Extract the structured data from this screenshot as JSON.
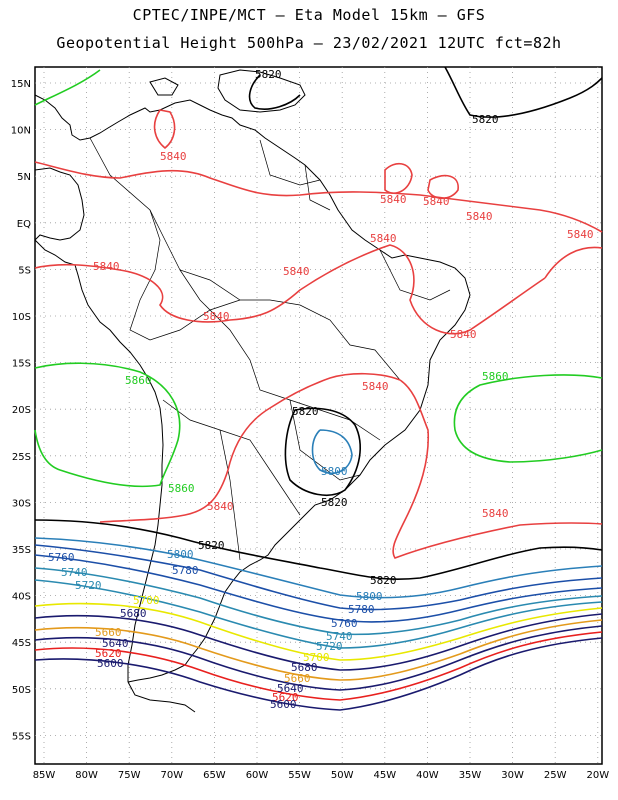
{
  "header": {
    "line1": "CPTEC/INPE/MCT –  Eta Model 15km – GFS",
    "line2": "Geopotential Height 500hPa – 23/02/2021 12UTC fct=82h"
  },
  "axes": {
    "lat_labels": [
      "15N",
      "10N",
      "5N",
      "EQ",
      "5S",
      "10S",
      "15S",
      "20S",
      "25S",
      "30S",
      "35S",
      "40S",
      "45S",
      "50S",
      "55S"
    ],
    "lon_labels": [
      "85W",
      "80W",
      "75W",
      "70W",
      "65W",
      "60W",
      "55W",
      "50W",
      "45W",
      "40W",
      "35W",
      "30W",
      "25W",
      "20W"
    ]
  },
  "colors": {
    "c5580": "#1a1a6e",
    "c5600": "#1a1a6e",
    "c5620": "#e8201e",
    "c5640": "#1a1a6e",
    "c5660": "#e39a1c",
    "c5680": "#1a1a6e",
    "c5700": "#e8e800",
    "c5720": "#2a8ab0",
    "c5740": "#2a8ab0",
    "c5760": "#1c4fa8",
    "c5780": "#1c4fa8",
    "c5800": "#2a7fb8",
    "c5820": "#000000",
    "c5840": "#e84040",
    "c5860": "#22cc22"
  },
  "contour_labels": [
    {
      "text": "5820",
      "id": "l5820a"
    },
    {
      "text": "5820",
      "id": "l5820b"
    },
    {
      "text": "5840",
      "id": "l5840a"
    },
    {
      "text": "5840",
      "id": "l5840b"
    },
    {
      "text": "5840",
      "id": "l5840c"
    },
    {
      "text": "5840",
      "id": "l5840d"
    },
    {
      "text": "5840",
      "id": "l5840e"
    },
    {
      "text": "5840",
      "id": "l5840f"
    },
    {
      "text": "5840",
      "id": "l5840g"
    },
    {
      "text": "5840",
      "id": "l5840h"
    },
    {
      "text": "5840",
      "id": "l5840i"
    },
    {
      "text": "5840",
      "id": "l5840j"
    },
    {
      "text": "5840",
      "id": "l5840k"
    },
    {
      "text": "5840",
      "id": "l5840l"
    },
    {
      "text": "5840",
      "id": "l5840m"
    },
    {
      "text": "5860",
      "id": "l5860a"
    },
    {
      "text": "5860",
      "id": "l5860b"
    },
    {
      "text": "5860",
      "id": "l5860c"
    },
    {
      "text": "5820",
      "id": "l5820c"
    },
    {
      "text": "5800",
      "id": "l5800a"
    },
    {
      "text": "5820",
      "id": "l5820d"
    },
    {
      "text": "5820",
      "id": "l5820e"
    },
    {
      "text": "5820",
      "id": "l5820f"
    },
    {
      "text": "5800",
      "id": "l5800b"
    },
    {
      "text": "5800",
      "id": "l5800c"
    },
    {
      "text": "5780",
      "id": "l5780a"
    },
    {
      "text": "5780",
      "id": "l5780b"
    },
    {
      "text": "5760",
      "id": "l5760a"
    },
    {
      "text": "5760",
      "id": "l5760b"
    },
    {
      "text": "5740",
      "id": "l5740a"
    },
    {
      "text": "5740",
      "id": "l5740b"
    },
    {
      "text": "5720",
      "id": "l5720a"
    },
    {
      "text": "5720",
      "id": "l5720b"
    },
    {
      "text": "5700",
      "id": "l5700a"
    },
    {
      "text": "5700",
      "id": "l5700b"
    },
    {
      "text": "5680",
      "id": "l5680a"
    },
    {
      "text": "5680",
      "id": "l5680b"
    },
    {
      "text": "5660",
      "id": "l5660a"
    },
    {
      "text": "5660",
      "id": "l5660b"
    },
    {
      "text": "5640",
      "id": "l5640a"
    },
    {
      "text": "5640",
      "id": "l5640b"
    },
    {
      "text": "5620",
      "id": "l5620a"
    },
    {
      "text": "5620",
      "id": "l5620b"
    },
    {
      "text": "5600",
      "id": "l5600a"
    },
    {
      "text": "5600",
      "id": "l5600b"
    }
  ]
}
